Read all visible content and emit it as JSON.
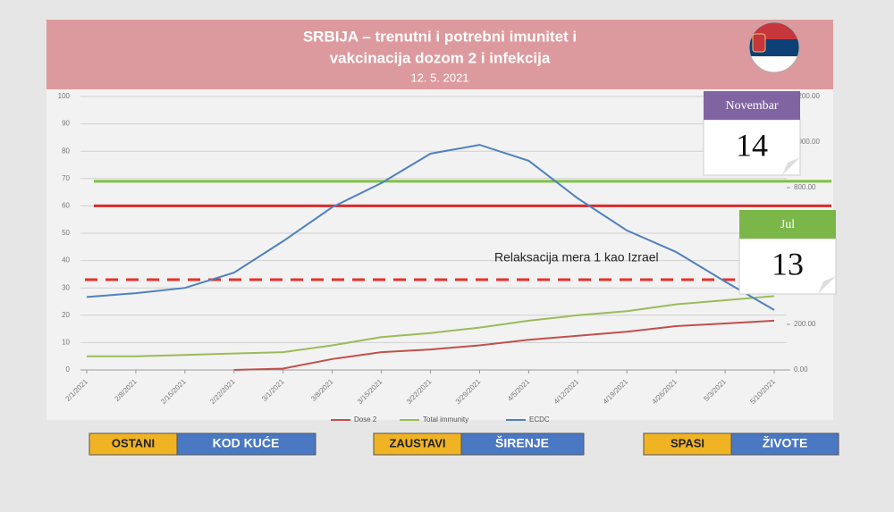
{
  "chart_data": {
    "type": "line",
    "title": [
      "SRBIJA – trenutni i potrebni imunitet i",
      "vakcinacija dozom 2 i infekcija"
    ],
    "subtitle": "12. 5. 2021",
    "categories": [
      "2/1/2021",
      "2/8/2021",
      "2/15/2021",
      "2/22/2021",
      "3/1/2021",
      "3/8/2021",
      "3/15/2021",
      "3/22/2021",
      "3/29/2021",
      "4/5/2021",
      "4/12/2021",
      "4/19/2021",
      "4/26/2021",
      "5/3/2021",
      "5/10/2021"
    ],
    "series": [
      {
        "name": "Dose 2",
        "color": "#c0504d",
        "values": [
          null,
          null,
          null,
          0,
          0.5,
          4,
          6.5,
          7.5,
          9,
          11,
          12.5,
          14,
          16,
          17,
          18
        ]
      },
      {
        "name": "Total immunity",
        "color": "#9bbb59",
        "values": [
          5,
          5,
          5.5,
          6,
          6.5,
          9,
          12,
          13.5,
          15.5,
          18,
          20,
          21.5,
          24,
          25.5,
          27
        ]
      },
      {
        "name": "ECDC",
        "color": "#4f81bd",
        "axis": "y2",
        "values": [
          320,
          337,
          360,
          427,
          565,
          714,
          820,
          949,
          988,
          918,
          753,
          612,
          518,
          388,
          263
        ]
      }
    ],
    "reference_lines": [
      {
        "value": 69,
        "color": "#7dc242",
        "dashed": false
      },
      {
        "value": 60,
        "color": "#d92b2b",
        "dashed": false
      },
      {
        "value": 33,
        "color": "#e8302a",
        "dashed": true
      }
    ],
    "annotation": "Relaksacija mera 1 kao Izrael",
    "ylim": [
      0,
      100
    ],
    "yticks": [
      0,
      10,
      20,
      30,
      40,
      50,
      60,
      70,
      80,
      90,
      100
    ],
    "y2lim": [
      0,
      1200
    ],
    "y2ticks": [
      {
        "value": 0,
        "label": "0.00"
      },
      {
        "value": 200,
        "label": "200.00"
      },
      {
        "value": 400,
        "label": "400.00"
      },
      {
        "value": 600,
        "label": "600.00"
      },
      {
        "value": 800,
        "label": "800.00"
      },
      {
        "value": 1000,
        "label": "1000.00"
      },
      {
        "value": 1200,
        "label": "1200.00"
      }
    ],
    "grid": true,
    "legend": "bottom"
  },
  "calendars": [
    {
      "month": "Novembar",
      "day": 14,
      "color": "#8064a2"
    },
    {
      "month": "Jul",
      "day": 13,
      "color": "#7ab648"
    }
  ],
  "buttons": [
    {
      "left": "OSTANI",
      "right": "KOD KUĆE"
    },
    {
      "left": "ZAUSTAVI",
      "right": "ŠIRENJE"
    },
    {
      "left": "SPASI",
      "right": "ŽIVOTE"
    }
  ]
}
